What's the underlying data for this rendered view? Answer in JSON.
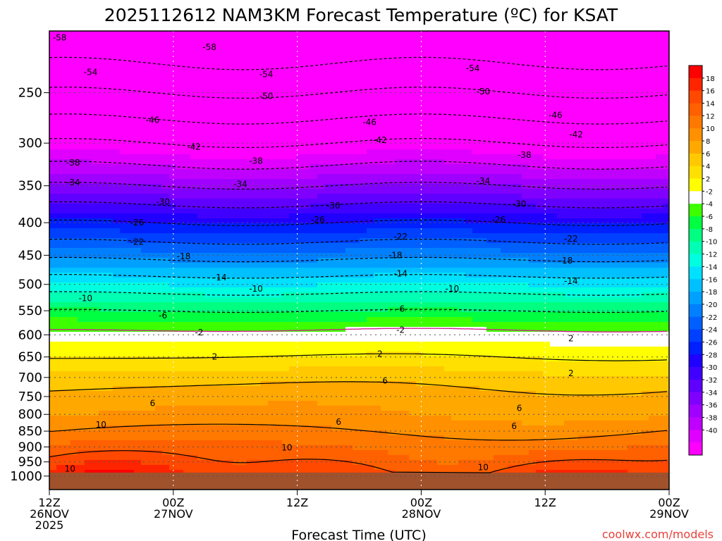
{
  "chart_data": {
    "type": "heatmap",
    "title": "2025112612 NAM3KM Forecast Temperature (ºC) for KSAT",
    "xlabel": "Forecast Time (UTC)",
    "ylabel": "",
    "y_scale": "log-pressure",
    "y_range": [
      1050,
      200
    ],
    "x_range_hours": [
      0,
      60
    ],
    "x_ticks": [
      {
        "hour": 0,
        "line1": "12Z",
        "line2": "26NOV",
        "line3": "2025"
      },
      {
        "hour": 12,
        "line1": "00Z",
        "line2": "27NOV",
        "line3": ""
      },
      {
        "hour": 24,
        "line1": "12Z",
        "line2": "",
        "line3": ""
      },
      {
        "hour": 36,
        "line1": "00Z",
        "line2": "28NOV",
        "line3": ""
      },
      {
        "hour": 48,
        "line1": "12Z",
        "line2": "",
        "line3": ""
      },
      {
        "hour": 60,
        "line1": "00Z",
        "line2": "29NOV",
        "line3": ""
      }
    ],
    "y_ticks": [
      250,
      300,
      350,
      400,
      450,
      500,
      550,
      600,
      650,
      700,
      750,
      800,
      850,
      900,
      950,
      1000
    ],
    "colorbar_ticks": [
      18,
      16,
      14,
      12,
      10,
      8,
      6,
      4,
      2,
      -2,
      -4,
      -6,
      -8,
      -10,
      -12,
      -14,
      -16,
      -18,
      -20,
      -22,
      -24,
      -26,
      -28,
      -30,
      -32,
      -34,
      -36,
      -38,
      -40
    ],
    "colorbar_colors": [
      "#ff0000",
      "#ff2400",
      "#ff4800",
      "#ff6000",
      "#ff7800",
      "#ff9000",
      "#ffa800",
      "#ffc800",
      "#ffe000",
      "#ffff00",
      "#ffffff",
      "#3cff00",
      "#00ff40",
      "#00ff80",
      "#00ffb4",
      "#00ffe0",
      "#00e0ff",
      "#00c0ff",
      "#00a0ff",
      "#0080ff",
      "#0060ff",
      "#0040ff",
      "#0020ff",
      "#2000ff",
      "#4000ff",
      "#6000ff",
      "#8000ff",
      "#a000ff",
      "#c000ff",
      "#e000ff",
      "#ff00ff"
    ],
    "ground_color": "#a0522d",
    "sample_profile": {
      "pressure_hpa": [
        200,
        250,
        300,
        350,
        400,
        450,
        500,
        550,
        600,
        650,
        700,
        750,
        800,
        850,
        900,
        950,
        1000
      ],
      "temperature_c": [
        -58,
        -50,
        -42,
        -34,
        -26,
        -19,
        -12,
        -6,
        -1,
        2,
        5,
        7,
        8,
        10,
        12,
        14,
        16
      ]
    },
    "contour_labels": [
      {
        "value": -58,
        "hour": 1,
        "p": 205
      },
      {
        "value": -58,
        "hour": 15.5,
        "p": 212
      },
      {
        "value": -54,
        "hour": 4,
        "p": 232
      },
      {
        "value": -54,
        "hour": 21,
        "p": 234
      },
      {
        "value": -54,
        "hour": 41,
        "p": 229
      },
      {
        "value": -50,
        "hour": 21,
        "p": 253
      },
      {
        "value": -50,
        "hour": 42,
        "p": 249
      },
      {
        "value": -46,
        "hour": 10,
        "p": 276
      },
      {
        "value": -46,
        "hour": 31,
        "p": 278
      },
      {
        "value": -46,
        "hour": 49,
        "p": 271
      },
      {
        "value": -42,
        "hour": 14,
        "p": 304
      },
      {
        "value": -42,
        "hour": 32,
        "p": 297
      },
      {
        "value": -42,
        "hour": 51,
        "p": 291
      },
      {
        "value": -38,
        "hour": 2.3,
        "p": 322
      },
      {
        "value": -38,
        "hour": 20,
        "p": 320
      },
      {
        "value": -38,
        "hour": 46,
        "p": 313
      },
      {
        "value": -34,
        "hour": 2.3,
        "p": 346
      },
      {
        "value": -34,
        "hour": 18.5,
        "p": 348
      },
      {
        "value": -34,
        "hour": 42,
        "p": 344
      },
      {
        "value": -30,
        "hour": 11,
        "p": 371
      },
      {
        "value": -30,
        "hour": 27.5,
        "p": 376
      },
      {
        "value": -30,
        "hour": 45.5,
        "p": 374
      },
      {
        "value": -26,
        "hour": 8.5,
        "p": 400
      },
      {
        "value": -26,
        "hour": 26,
        "p": 396
      },
      {
        "value": -26,
        "hour": 43.5,
        "p": 396
      },
      {
        "value": -22,
        "hour": 8.5,
        "p": 429
      },
      {
        "value": -22,
        "hour": 34,
        "p": 421
      },
      {
        "value": -22,
        "hour": 50.5,
        "p": 424
      },
      {
        "value": -18,
        "hour": 13,
        "p": 452
      },
      {
        "value": -18,
        "hour": 33.5,
        "p": 450
      },
      {
        "value": -18,
        "hour": 50,
        "p": 459
      },
      {
        "value": -14,
        "hour": 16.5,
        "p": 488
      },
      {
        "value": -14,
        "hour": 34,
        "p": 481
      },
      {
        "value": -14,
        "hour": 50.5,
        "p": 494
      },
      {
        "value": -10,
        "hour": 3.5,
        "p": 526
      },
      {
        "value": -10,
        "hour": 20,
        "p": 508
      },
      {
        "value": -10,
        "hour": 39,
        "p": 508
      },
      {
        "value": -6,
        "hour": 11,
        "p": 560
      },
      {
        "value": -6,
        "hour": 34,
        "p": 546
      },
      {
        "value": -2,
        "hour": 14.5,
        "p": 595
      },
      {
        "value": -2,
        "hour": 34,
        "p": 590
      },
      {
        "value": 2,
        "hour": 16,
        "p": 650
      },
      {
        "value": 2,
        "hour": 32,
        "p": 643
      },
      {
        "value": 2,
        "hour": 50.5,
        "p": 690
      },
      {
        "value": 2,
        "hour": 50.5,
        "p": 608
      },
      {
        "value": 6,
        "hour": 32.5,
        "p": 708
      },
      {
        "value": 6,
        "hour": 10,
        "p": 769
      },
      {
        "value": 6,
        "hour": 28,
        "p": 822
      },
      {
        "value": 6,
        "hour": 45.5,
        "p": 782
      },
      {
        "value": 6,
        "hour": 45,
        "p": 835
      },
      {
        "value": 10,
        "hour": 5,
        "p": 831
      },
      {
        "value": 10,
        "hour": 23,
        "p": 902
      },
      {
        "value": 10,
        "hour": 42,
        "p": 969
      },
      {
        "value": 10,
        "hour": 2,
        "p": 974
      }
    ]
  },
  "credit": "coolwx.com/models",
  "credit_color": "#e8403a"
}
